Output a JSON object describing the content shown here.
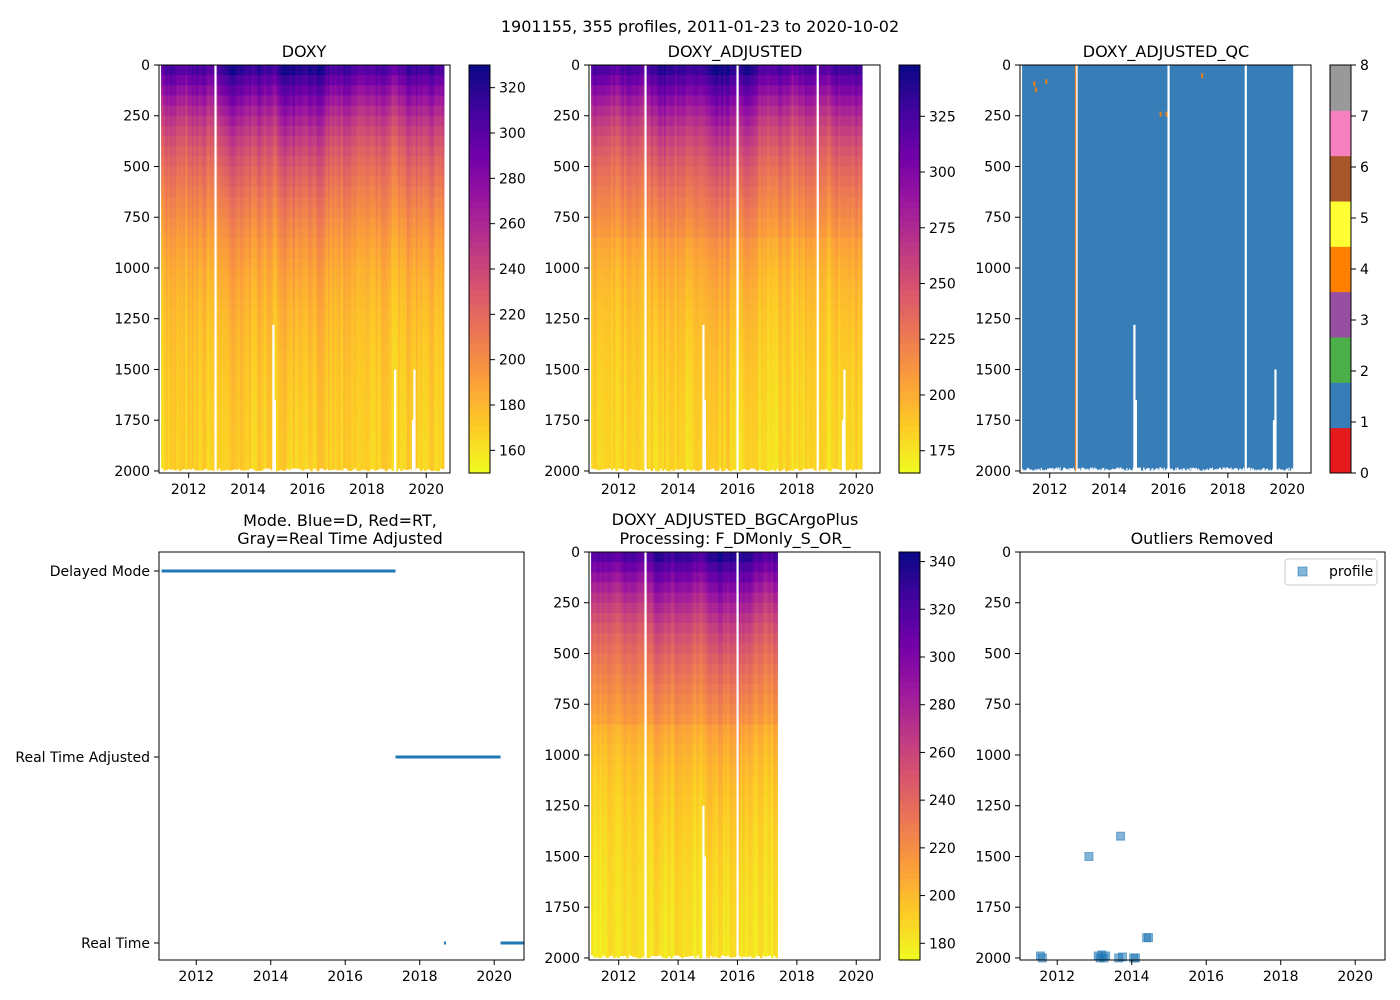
{
  "figure_title": "1901155, 355 profiles, 2011-01-23 to 2020-10-02",
  "colors": {
    "plasma": [
      "#0d0887",
      "#46039f",
      "#7201a8",
      "#9c179e",
      "#bd3786",
      "#d8576b",
      "#ed7953",
      "#fb9f3a",
      "#fdca26",
      "#f0f921"
    ],
    "qc": [
      "#e41a1c",
      "#377eb8",
      "#4daf4a",
      "#984ea3",
      "#ff7f00",
      "#ffff33",
      "#a65628",
      "#f781bf",
      "#999999"
    ],
    "series": "#1f77b4"
  },
  "chart_data": [
    {
      "id": "doxy",
      "type": "heatmap",
      "title": "DOXY",
      "xlabel": "",
      "ylabel": "",
      "xlim": [
        2011.0,
        2020.8
      ],
      "ylim": [
        2010,
        0
      ],
      "xticks": [
        "2012",
        "2014",
        "2016",
        "2018",
        "2020"
      ],
      "yticks": [
        "0",
        "250",
        "500",
        "750",
        "1000",
        "1250",
        "1500",
        "1750",
        "2000"
      ],
      "colorbar": {
        "min": 150,
        "max": 330,
        "ticks": [
          "160",
          "180",
          "200",
          "220",
          "240",
          "260",
          "280",
          "300",
          "320"
        ]
      }
    },
    {
      "id": "doxy_adjusted",
      "type": "heatmap",
      "title": "DOXY_ADJUSTED",
      "xlabel": "",
      "ylabel": "",
      "xlim": [
        2011.0,
        2020.8
      ],
      "ylim": [
        2010,
        0
      ],
      "xticks": [
        "2012",
        "2014",
        "2016",
        "2018",
        "2020"
      ],
      "yticks": [
        "0",
        "250",
        "500",
        "750",
        "1000",
        "1250",
        "1500",
        "1750",
        "2000"
      ],
      "colorbar": {
        "min": 165,
        "max": 348,
        "ticks": [
          "175",
          "200",
          "225",
          "250",
          "275",
          "300",
          "325"
        ]
      }
    },
    {
      "id": "doxy_adjusted_qc",
      "type": "heatmap",
      "title": "DOXY_ADJUSTED_QC",
      "xlabel": "",
      "ylabel": "",
      "xlim": [
        2011.0,
        2020.8
      ],
      "ylim": [
        2010,
        0
      ],
      "xticks": [
        "2012",
        "2014",
        "2016",
        "2018",
        "2020"
      ],
      "yticks": [
        "0",
        "250",
        "500",
        "750",
        "1000",
        "1250",
        "1500",
        "1750",
        "2000"
      ],
      "dominant_value": 1,
      "colorbar": {
        "min": 0,
        "max": 8,
        "ticks": [
          "0",
          "1",
          "2",
          "3",
          "4",
          "5",
          "6",
          "7",
          "8"
        ]
      }
    },
    {
      "id": "mode",
      "type": "scatter",
      "title_lines": [
        "Mode. Blue=D, Red=RT,",
        "Gray=Real Time Adjusted"
      ],
      "xlabel": "",
      "ylabel": "",
      "xlim": [
        2011.0,
        2020.8
      ],
      "xticks": [
        "2012",
        "2014",
        "2016",
        "2018",
        "2020"
      ],
      "categories": [
        "Delayed Mode",
        "Real Time Adjusted",
        "Real Time"
      ],
      "segments": [
        {
          "category": "Delayed Mode",
          "x_start": 2011.07,
          "x_end": 2017.35
        },
        {
          "category": "Real Time Adjusted",
          "x_start": 2017.35,
          "x_end": 2020.17
        },
        {
          "category": "Real Time",
          "x_start": 2018.65,
          "x_end": 2018.7
        },
        {
          "category": "Real Time",
          "x_start": 2020.17,
          "x_end": 2020.8
        }
      ]
    },
    {
      "id": "bgcargoplus",
      "type": "heatmap",
      "title_lines": [
        "DOXY_ADJUSTED_BGCArgoPlus",
        "Processing: F_DMonly_S_OR_"
      ],
      "xlabel": "",
      "ylabel": "",
      "xlim": [
        2011.0,
        2020.8
      ],
      "ylim": [
        2010,
        0
      ],
      "data_x_end": 2017.35,
      "xticks": [
        "2012",
        "2014",
        "2016",
        "2018",
        "2020"
      ],
      "yticks": [
        "0",
        "250",
        "500",
        "750",
        "1000",
        "1250",
        "1500",
        "1750",
        "2000"
      ],
      "colorbar": {
        "min": 173,
        "max": 344,
        "ticks": [
          "180",
          "200",
          "220",
          "240",
          "260",
          "280",
          "300",
          "320",
          "340"
        ]
      }
    },
    {
      "id": "outliers",
      "type": "scatter",
      "title": "Outliers Removed",
      "xlabel": "",
      "ylabel": "",
      "xlim": [
        2011.0,
        2020.8
      ],
      "ylim": [
        2010,
        0
      ],
      "xticks": [
        "2012",
        "2014",
        "2016",
        "2018",
        "2020"
      ],
      "yticks": [
        "0",
        "250",
        "500",
        "750",
        "1000",
        "1250",
        "1500",
        "1750",
        "2000"
      ],
      "legend": {
        "label": "profile",
        "position": "top-right"
      },
      "points": [
        {
          "x": 2011.55,
          "y": 1990
        },
        {
          "x": 2011.6,
          "y": 2000
        },
        {
          "x": 2012.85,
          "y": 1500
        },
        {
          "x": 2013.1,
          "y": 1990
        },
        {
          "x": 2013.15,
          "y": 2000
        },
        {
          "x": 2013.2,
          "y": 1985
        },
        {
          "x": 2013.25,
          "y": 2000
        },
        {
          "x": 2013.3,
          "y": 1990
        },
        {
          "x": 2013.65,
          "y": 2000
        },
        {
          "x": 2013.7,
          "y": 1400
        },
        {
          "x": 2013.75,
          "y": 1995
        },
        {
          "x": 2014.05,
          "y": 2000
        },
        {
          "x": 2014.1,
          "y": 2000
        },
        {
          "x": 2014.4,
          "y": 1900
        },
        {
          "x": 2014.45,
          "y": 1900
        }
      ]
    }
  ]
}
